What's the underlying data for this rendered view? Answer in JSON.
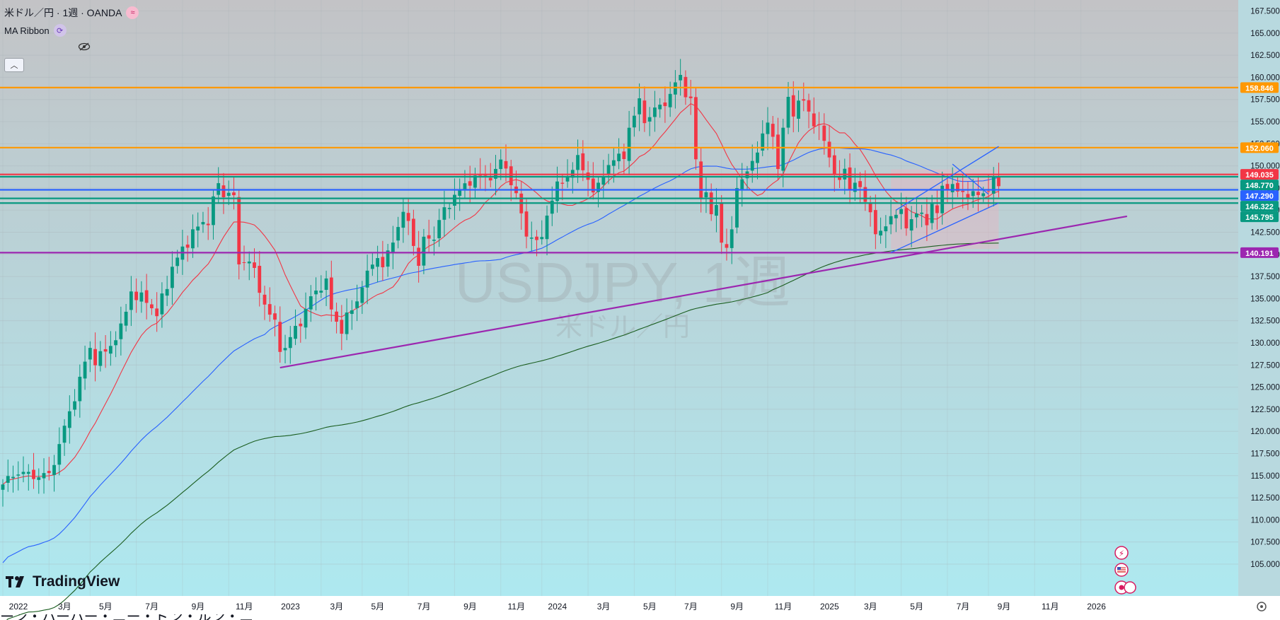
{
  "header": {
    "title": "米ドル／円 · 1週 · OANDA",
    "indicator": "MA Ribbon"
  },
  "watermark": {
    "symbol": "USDJPY, 1週",
    "subtitle": "米ドル／円"
  },
  "logo_text": "TradingView",
  "bottom_text": "ーン・ハーハー・ニー・ドン・ルン・ニー",
  "colors": {
    "up": "#089981",
    "down": "#f23645",
    "ma_fast": "#f23645",
    "ma_mid": "#2962ff",
    "ma_slow": "#1b5e20",
    "orange": "#ff9800",
    "purple": "#9c27b0",
    "blue": "#2962ff",
    "green": "#089981",
    "red": "#f23645"
  },
  "chart_data": {
    "type": "candlestick",
    "symbol": "USDJPY",
    "timeframe": "1週",
    "ylim": [
      103.0,
      168.5
    ],
    "y_ticks": [
      "167.500",
      "165.000",
      "162.500",
      "160.000",
      "157.500",
      "155.000",
      "152.500",
      "150.000",
      "147.500",
      "145.000",
      "142.500",
      "140.000",
      "137.500",
      "135.000",
      "132.500",
      "130.000",
      "127.500",
      "125.000",
      "122.500",
      "120.000",
      "117.500",
      "115.000",
      "112.500",
      "110.000",
      "107.500",
      "105.000"
    ],
    "x_labels": [
      {
        "label": "2022",
        "t": 0
      },
      {
        "label": "3月",
        "t": 9
      },
      {
        "label": "5月",
        "t": 17
      },
      {
        "label": "7月",
        "t": 26
      },
      {
        "label": "9月",
        "t": 35
      },
      {
        "label": "11月",
        "t": 44
      },
      {
        "label": "2023",
        "t": 53
      },
      {
        "label": "3月",
        "t": 62
      },
      {
        "label": "5月",
        "t": 70
      },
      {
        "label": "7月",
        "t": 79
      },
      {
        "label": "9月",
        "t": 88
      },
      {
        "label": "11月",
        "t": 97
      },
      {
        "label": "2024",
        "t": 105
      },
      {
        "label": "3月",
        "t": 114
      },
      {
        "label": "5月",
        "t": 123
      },
      {
        "label": "7月",
        "t": 131
      },
      {
        "label": "9月",
        "t": 140
      },
      {
        "label": "11月",
        "t": 149
      },
      {
        "label": "2025",
        "t": 158
      },
      {
        "label": "3月",
        "t": 166
      },
      {
        "label": "5月",
        "t": 175
      },
      {
        "label": "7月",
        "t": 184
      },
      {
        "label": "9月",
        "t": 192
      },
      {
        "label": "11月",
        "t": 201
      },
      {
        "label": "2026",
        "t": 210
      }
    ],
    "anchors": [
      [
        0,
        114.0
      ],
      [
        3,
        115.5
      ],
      [
        5,
        115.0
      ],
      [
        9,
        115.0
      ],
      [
        11,
        118.5
      ],
      [
        14,
        124.0
      ],
      [
        17,
        129.5
      ],
      [
        18,
        128.0
      ],
      [
        20,
        129.0
      ],
      [
        23,
        131.5
      ],
      [
        25,
        136.0
      ],
      [
        26,
        135.0
      ],
      [
        28,
        135.0
      ],
      [
        30,
        133.0
      ],
      [
        31,
        135.0
      ],
      [
        33,
        138.5
      ],
      [
        35,
        140.5
      ],
      [
        37,
        142.5
      ],
      [
        40,
        144.0
      ],
      [
        42,
        148.0
      ],
      [
        43,
        146.5
      ],
      [
        44,
        147.5
      ],
      [
        45,
        146.0
      ],
      [
        46,
        139.0
      ],
      [
        48,
        139.5
      ],
      [
        50,
        136.0
      ],
      [
        51,
        134.5
      ],
      [
        53,
        132.0
      ],
      [
        54,
        129.5
      ],
      [
        55,
        129.5
      ],
      [
        56,
        130.5
      ],
      [
        58,
        132.5
      ],
      [
        60,
        135.0
      ],
      [
        62,
        136.5
      ],
      [
        63,
        137.0
      ],
      [
        64,
        133.5
      ],
      [
        65,
        132.5
      ],
      [
        66,
        131.5
      ],
      [
        67,
        133.0
      ],
      [
        68,
        133.5
      ],
      [
        70,
        136.5
      ],
      [
        73,
        140.0
      ],
      [
        74,
        138.5
      ],
      [
        76,
        141.5
      ],
      [
        77,
        143.5
      ],
      [
        78,
        144.5
      ],
      [
        79,
        143.5
      ],
      [
        81,
        139.0
      ],
      [
        82,
        141.5
      ],
      [
        84,
        142.0
      ],
      [
        85,
        144.0
      ],
      [
        87,
        145.5
      ],
      [
        88,
        147.0
      ],
      [
        90,
        147.5
      ],
      [
        92,
        149.0
      ],
      [
        94,
        148.5
      ],
      [
        96,
        149.5
      ],
      [
        97,
        150.5
      ],
      [
        99,
        148.5
      ],
      [
        100,
        146.5
      ],
      [
        101,
        144.5
      ],
      [
        102,
        142.0
      ],
      [
        103,
        142.5
      ],
      [
        104,
        141.0
      ],
      [
        105,
        142.0
      ],
      [
        106,
        144.5
      ],
      [
        107,
        146.5
      ],
      [
        108,
        147.5
      ],
      [
        110,
        149.0
      ],
      [
        112,
        150.5
      ],
      [
        113,
        150.0
      ],
      [
        114,
        148.5
      ],
      [
        115,
        147.0
      ],
      [
        116,
        147.5
      ],
      [
        117,
        149.5
      ],
      [
        119,
        150.5
      ],
      [
        121,
        151.5
      ],
      [
        122,
        154.0
      ],
      [
        123,
        155.5
      ],
      [
        124,
        157.5
      ],
      [
        125,
        155.5
      ],
      [
        126,
        155.0
      ],
      [
        127,
        156.5
      ],
      [
        128,
        157.0
      ],
      [
        130,
        157.5
      ],
      [
        131,
        159.5
      ],
      [
        132,
        160.5
      ],
      [
        133,
        158.0
      ],
      [
        134,
        157.0
      ],
      [
        135,
        151.0
      ],
      [
        136,
        146.5
      ],
      [
        137,
        147.0
      ],
      [
        138,
        144.0
      ],
      [
        139,
        146.0
      ],
      [
        140,
        141.5
      ],
      [
        141,
        140.5
      ],
      [
        142,
        142.5
      ],
      [
        143,
        148.0
      ],
      [
        145,
        149.0
      ],
      [
        147,
        152.0
      ],
      [
        148,
        153.5
      ],
      [
        149,
        154.5
      ],
      [
        150,
        153.5
      ],
      [
        151,
        150.0
      ],
      [
        152,
        154.0
      ],
      [
        153,
        157.5
      ],
      [
        154,
        156.0
      ],
      [
        155,
        157.5
      ],
      [
        156,
        157.0
      ],
      [
        157,
        156.0
      ],
      [
        158,
        155.0
      ],
      [
        159,
        154.5
      ],
      [
        160,
        152.5
      ],
      [
        161,
        151.0
      ],
      [
        162,
        149.5
      ],
      [
        163,
        148.0
      ],
      [
        164,
        149.5
      ],
      [
        165,
        147.5
      ],
      [
        166,
        148.5
      ],
      [
        167,
        147.0
      ],
      [
        169,
        145.0
      ],
      [
        170,
        142.5
      ],
      [
        171,
        142.0
      ],
      [
        172,
        143.5
      ],
      [
        173,
        144.5
      ],
      [
        175,
        144.5
      ],
      [
        176,
        143.5
      ],
      [
        177,
        144.0
      ],
      [
        178,
        144.5
      ],
      [
        180,
        144.0
      ],
      [
        181,
        145.5
      ],
      [
        182,
        144.5
      ],
      [
        183,
        147.5
      ],
      [
        184,
        148.0
      ],
      [
        185,
        147.5
      ],
      [
        186,
        147.0
      ],
      [
        188,
        147.0
      ],
      [
        189,
        146.5
      ],
      [
        191,
        147.0
      ],
      [
        193,
        148.0
      ],
      [
        194,
        147.7
      ]
    ],
    "moving_averages": [
      {
        "length": "fast",
        "color": "#f23645",
        "note": "red"
      },
      {
        "length": "mid",
        "color": "#2962ff",
        "note": "blue"
      },
      {
        "length": "slow",
        "color": "#1b5e20",
        "note": "dark green"
      }
    ],
    "horizontal_levels": [
      {
        "price": 158.846,
        "label": "158.846",
        "color": "#ff9800"
      },
      {
        "price": 152.06,
        "label": "152.060",
        "color": "#ff9800"
      },
      {
        "price": 149.035,
        "label": "149.035",
        "color": "#f23645"
      },
      {
        "price": 148.77,
        "label": "148.770",
        "color": "#089981"
      },
      {
        "price": 147.29,
        "label": "147.290",
        "color": "#2962ff"
      },
      {
        "price": 146.322,
        "label": "146.322",
        "color": "#089981"
      },
      {
        "price": 145.795,
        "label": "145.795",
        "color": "#089981"
      },
      {
        "price": 140.191,
        "label": "140.191",
        "color": "#9c27b0"
      }
    ],
    "trendlines": [
      {
        "color": "#9c27b0",
        "from": [
          54,
          127.2
        ],
        "to": [
          219,
          144.3
        ]
      },
      {
        "color": "#2962ff",
        "from": [
          173,
          140.2
        ],
        "to": [
          194,
          145.8
        ]
      },
      {
        "color": "#2962ff",
        "from": [
          174,
          145.0
        ],
        "to": [
          194,
          152.2
        ]
      },
      {
        "color": "#2962ff",
        "from": [
          185,
          150.2
        ],
        "to": [
          192,
          146.8
        ]
      }
    ]
  }
}
